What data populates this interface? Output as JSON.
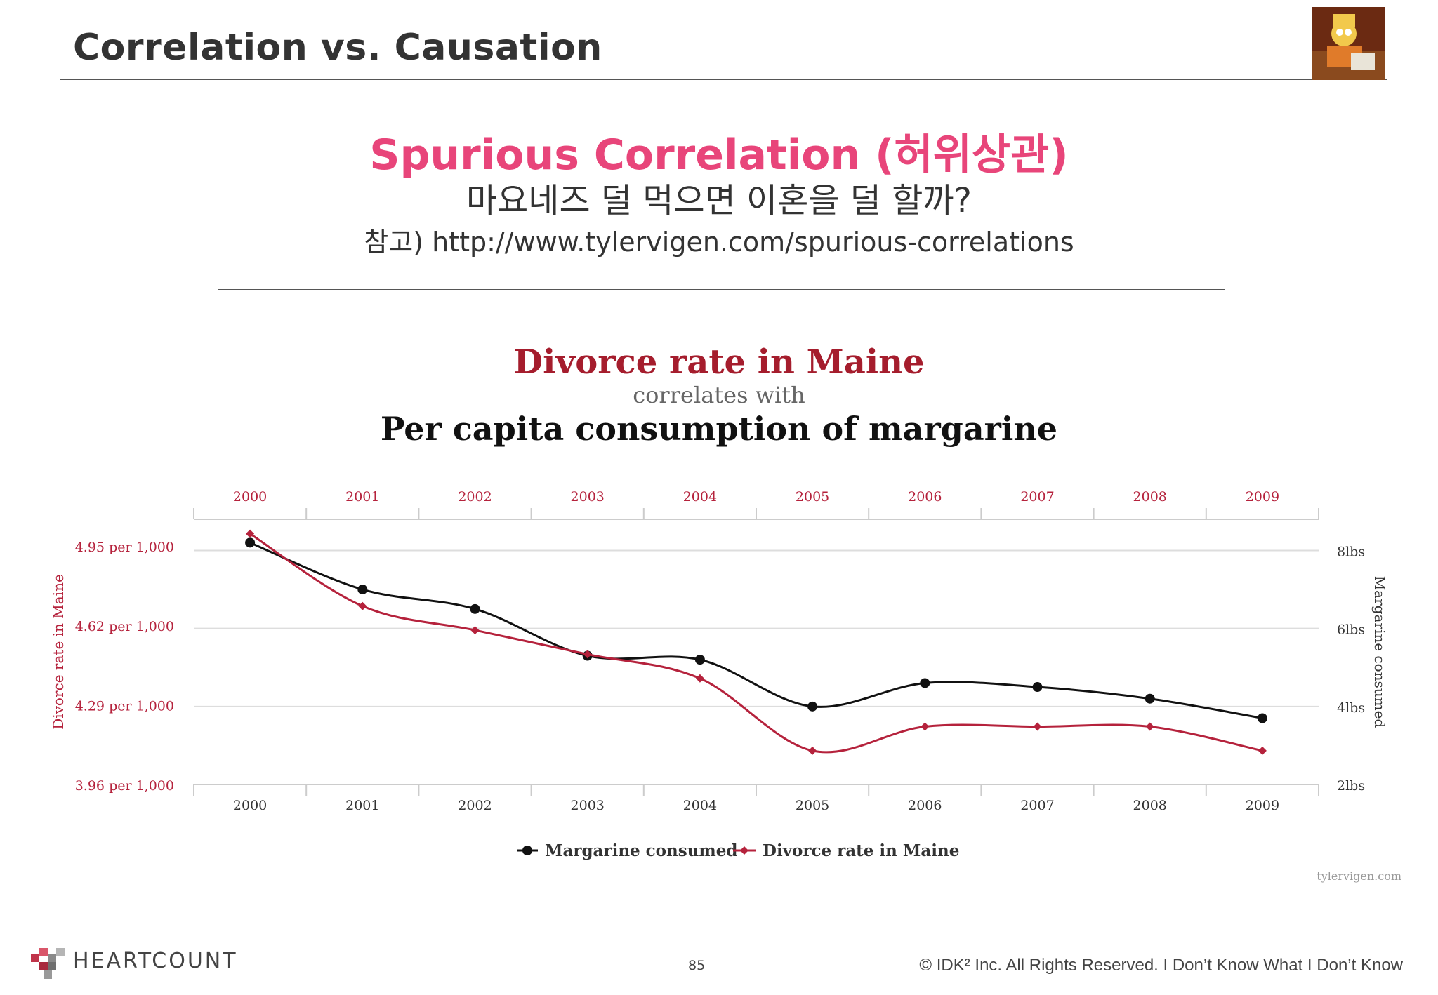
{
  "slide": {
    "title": "Correlation vs. Causation",
    "headline": "Spurious Correlation (허위상관)",
    "subline": "마요네즈 덜 먹으면 이혼을 덜 할까?",
    "reference": "참고) http://www.tylervigen.com/spurious-correlations"
  },
  "chart_data": {
    "type": "line",
    "title": "Divorce rate in Maine",
    "subtitle": "correlates with",
    "title2": "Per capita consumption of margarine",
    "categories": [
      "2000",
      "2001",
      "2002",
      "2003",
      "2004",
      "2005",
      "2006",
      "2007",
      "2008",
      "2009"
    ],
    "series": [
      {
        "name": "Margarine consumed",
        "axis": "right",
        "color": "#111111",
        "marker": "circle",
        "values": [
          8.2,
          7.0,
          6.5,
          5.3,
          5.2,
          4.0,
          4.6,
          4.5,
          4.2,
          3.7
        ]
      },
      {
        "name": "Divorce rate in Maine",
        "axis": "left",
        "color": "#b5223c",
        "marker": "diamond",
        "values": [
          5.0,
          4.7,
          4.6,
          4.5,
          4.4,
          4.1,
          4.2,
          4.2,
          4.2,
          4.1
        ]
      }
    ],
    "left_axis": {
      "label": "Divorce rate in Maine",
      "ticks": [
        "4.95 per 1,000",
        "4.62 per 1,000",
        "4.29 per 1,000",
        "3.96 per 1,000"
      ],
      "ylim": [
        3.96,
        5.06
      ],
      "color": "#b5223c"
    },
    "right_axis": {
      "label": "Margarine consumed",
      "ticks": [
        "8lbs",
        "6lbs",
        "4lbs",
        "2lbs"
      ],
      "ylim": [
        2,
        8.8
      ]
    },
    "grid": true,
    "legend": "bottom",
    "source": "tylervigen.com"
  },
  "footer": {
    "logo": "HEARTCOUNT",
    "page": "85",
    "copyright": "© IDK² Inc. All Rights Reserved.  I Don’t Know What I Don’t Know"
  },
  "colors": {
    "accent": "#e8457a",
    "divorce": "#b5223c",
    "margarine": "#111111"
  }
}
